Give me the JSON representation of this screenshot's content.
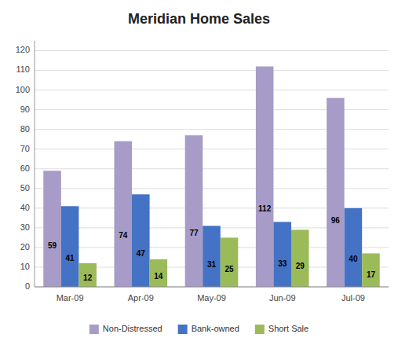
{
  "chart_data": {
    "type": "bar",
    "title": "Meridian Home Sales",
    "categories": [
      "Mar-09",
      "Apr-09",
      "May-09",
      "Jun-09",
      "Jul-09"
    ],
    "series": [
      {
        "name": "Non-Distressed",
        "color": "#A79CC8",
        "values": [
          59,
          74,
          77,
          112,
          96
        ]
      },
      {
        "name": "Bank-owned",
        "color": "#4472C4",
        "values": [
          41,
          47,
          31,
          33,
          40
        ]
      },
      {
        "name": "Short Sale",
        "color": "#9BBB59",
        "values": [
          12,
          14,
          25,
          29,
          17
        ]
      }
    ],
    "ylim": [
      0,
      125
    ],
    "yticks": [
      0,
      10,
      20,
      30,
      40,
      50,
      60,
      70,
      80,
      90,
      100,
      110,
      120
    ],
    "grid": true,
    "legend": "bottom",
    "data_labels": true
  }
}
